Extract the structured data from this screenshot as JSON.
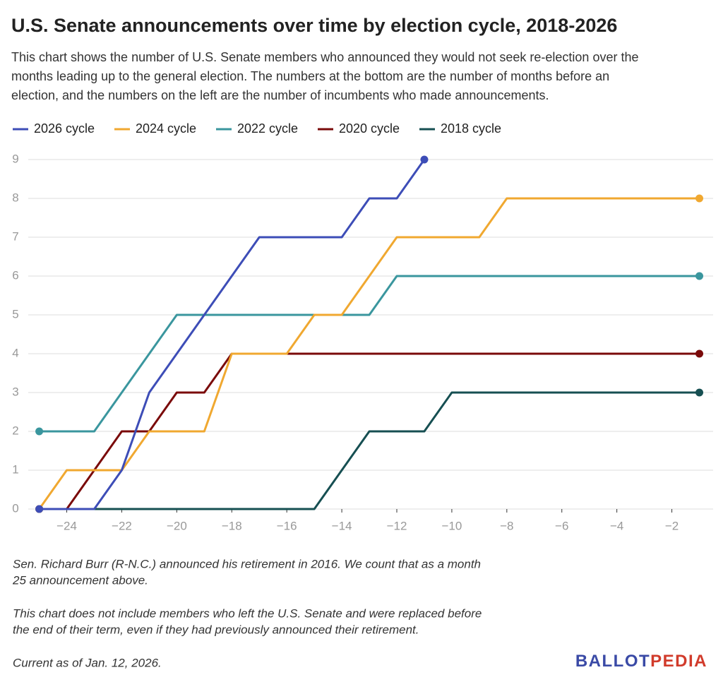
{
  "chart_data": {
    "type": "line",
    "title": "U.S. Senate announcements over time by election cycle, 2018-2026",
    "subtitle_lines": [
      "This chart shows the number of U.S. Senate members who announced they would not seek re-election over the",
      "months leading up to the general election. The numbers at the bottom are the number of months before an",
      "election, and the numbers on the left are the number of incumbents who made announcements."
    ],
    "x": [
      -25,
      -24,
      -23,
      -22,
      -21,
      -20,
      -19,
      -18,
      -17,
      -16,
      -15,
      -14,
      -13,
      -12,
      -11,
      -10,
      -9,
      -8,
      -7,
      -6,
      -5,
      -4,
      -3,
      -2,
      -1
    ],
    "series": [
      {
        "name": "2026 cycle",
        "color": "#3d4db7",
        "values": [
          0,
          0,
          0,
          1,
          3,
          4,
          5,
          6,
          7,
          7,
          7,
          7,
          8,
          8,
          9,
          null,
          null,
          null,
          null,
          null,
          null,
          null,
          null,
          null,
          null
        ]
      },
      {
        "name": "2024 cycle",
        "color": "#f0a830",
        "values": [
          0,
          1,
          1,
          1,
          2,
          2,
          2,
          4,
          4,
          4,
          5,
          5,
          6,
          7,
          7,
          7,
          7,
          8,
          8,
          8,
          8,
          8,
          8,
          8,
          8
        ]
      },
      {
        "name": "2022 cycle",
        "color": "#3a969e",
        "values": [
          2,
          2,
          2,
          3,
          4,
          5,
          5,
          5,
          5,
          5,
          5,
          5,
          5,
          6,
          6,
          6,
          6,
          6,
          6,
          6,
          6,
          6,
          6,
          6,
          6
        ]
      },
      {
        "name": "2020 cycle",
        "color": "#7a0a0a",
        "values": [
          0,
          0,
          1,
          2,
          2,
          3,
          3,
          4,
          4,
          4,
          4,
          4,
          4,
          4,
          4,
          4,
          4,
          4,
          4,
          4,
          4,
          4,
          4,
          4,
          4
        ]
      },
      {
        "name": "2018 cycle",
        "color": "#164f52",
        "values": [
          0,
          0,
          0,
          0,
          0,
          0,
          0,
          0,
          0,
          0,
          0,
          1,
          2,
          2,
          2,
          3,
          3,
          3,
          3,
          3,
          3,
          3,
          3,
          3,
          3
        ]
      }
    ],
    "xlim": [
      -25.4,
      -0.5
    ],
    "ylim": [
      0,
      9
    ],
    "xticks": [
      {
        "value": -24,
        "label": "−24"
      },
      {
        "value": -22,
        "label": "−22"
      },
      {
        "value": -20,
        "label": "−20"
      },
      {
        "value": -18,
        "label": "−18"
      },
      {
        "value": -16,
        "label": "−16"
      },
      {
        "value": -14,
        "label": "−14"
      },
      {
        "value": -12,
        "label": "−12"
      },
      {
        "value": -10,
        "label": "−10"
      },
      {
        "value": -8,
        "label": "−8"
      },
      {
        "value": -6,
        "label": "−6"
      },
      {
        "value": -4,
        "label": "−4"
      },
      {
        "value": -2,
        "label": "−2"
      }
    ],
    "yticks": [
      0,
      1,
      2,
      3,
      4,
      5,
      6,
      7,
      8,
      9
    ],
    "grid": true,
    "legend": "top",
    "notes": [
      [
        "Sen. Richard Burr (R-N.C.) announced his retirement in 2016. We count that as a month",
        "25 announcement above."
      ],
      [
        "This chart does not include members who left the U.S. Senate and were replaced before",
        "the end of their term, even if they had previously announced their retirement."
      ],
      [
        "Current as of Jan. 12, 2026."
      ]
    ],
    "logo": [
      "BALLOT",
      "PEDIA"
    ]
  }
}
